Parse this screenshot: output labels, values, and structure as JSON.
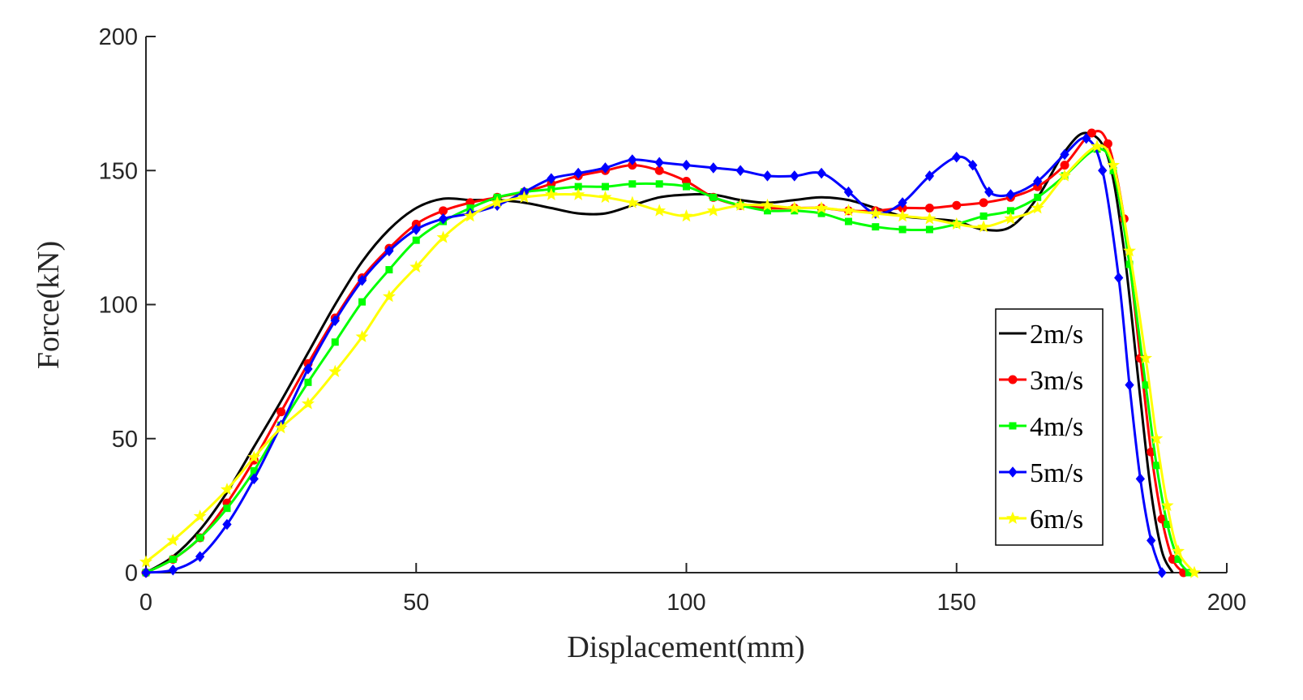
{
  "chart_data": {
    "type": "line",
    "title": "",
    "xlabel": "Displacement(mm)",
    "ylabel": "Force(kN)",
    "xlim": [
      0,
      200
    ],
    "ylim": [
      0,
      200
    ],
    "xticks": [
      "0",
      "50",
      "100",
      "150",
      "200"
    ],
    "yticks": [
      "0",
      "50",
      "100",
      "150",
      "200"
    ],
    "legend_position": "center-right",
    "series": [
      {
        "name": "2m/s",
        "color": "#000000",
        "marker": "none",
        "x": [
          0,
          5,
          10,
          15,
          20,
          25,
          30,
          35,
          40,
          45,
          50,
          55,
          60,
          65,
          70,
          75,
          80,
          85,
          90,
          95,
          100,
          105,
          110,
          115,
          120,
          125,
          130,
          135,
          140,
          145,
          150,
          155,
          160,
          165,
          170,
          174,
          178,
          181,
          184,
          186,
          188,
          190
        ],
        "y": [
          0,
          6,
          16,
          30,
          47,
          64,
          82,
          100,
          116,
          128,
          136,
          139.5,
          139,
          139,
          138,
          136,
          134,
          134,
          137,
          140,
          141,
          141,
          139,
          138,
          139,
          140,
          139,
          136,
          133,
          132,
          131,
          128,
          129,
          140,
          157,
          164,
          155,
          120,
          65,
          30,
          8,
          0
        ]
      },
      {
        "name": "3m/s",
        "color": "#ff0000",
        "marker": "circle",
        "x": [
          0,
          5,
          10,
          15,
          20,
          25,
          30,
          35,
          40,
          45,
          50,
          55,
          60,
          65,
          70,
          75,
          80,
          85,
          90,
          95,
          100,
          105,
          110,
          115,
          120,
          125,
          130,
          135,
          140,
          145,
          150,
          155,
          160,
          165,
          170,
          175,
          178,
          181,
          184,
          186,
          188,
          190,
          192
        ],
        "y": [
          0,
          5,
          13,
          26,
          42,
          60,
          78,
          95,
          110,
          121,
          130,
          135,
          138,
          140,
          142,
          145,
          148,
          150,
          152,
          150,
          146,
          140,
          137,
          136,
          136,
          136,
          135,
          135,
          136,
          136,
          137,
          138,
          140,
          144,
          152,
          164,
          160,
          132,
          80,
          45,
          20,
          5,
          0
        ]
      },
      {
        "name": "4m/s",
        "color": "#00ff00",
        "marker": "square",
        "x": [
          0,
          5,
          10,
          15,
          20,
          25,
          30,
          35,
          40,
          45,
          50,
          55,
          60,
          65,
          70,
          75,
          80,
          85,
          90,
          95,
          100,
          105,
          110,
          115,
          120,
          125,
          130,
          135,
          140,
          145,
          150,
          155,
          160,
          165,
          170,
          176,
          179,
          182,
          185,
          187,
          189,
          191,
          193
        ],
        "y": [
          0,
          5,
          13,
          24,
          38,
          55,
          71,
          86,
          101,
          113,
          124,
          131,
          136,
          140,
          142,
          143,
          144,
          144,
          145,
          145,
          144,
          140,
          137,
          135,
          135,
          134,
          131,
          129,
          128,
          128,
          130,
          133,
          135,
          140,
          148,
          158,
          150,
          115,
          70,
          40,
          18,
          5,
          0
        ]
      },
      {
        "name": "5m/s",
        "color": "#0000ff",
        "marker": "diamond",
        "x": [
          0,
          5,
          10,
          15,
          20,
          25,
          30,
          35,
          40,
          45,
          50,
          55,
          60,
          65,
          70,
          75,
          80,
          85,
          90,
          95,
          100,
          105,
          110,
          115,
          120,
          125,
          130,
          135,
          140,
          145,
          150,
          153,
          156,
          160,
          165,
          170,
          174,
          177,
          180,
          182,
          184,
          186,
          188
        ],
        "y": [
          0,
          1,
          6,
          18,
          35,
          55,
          76,
          94,
          109,
          120,
          128,
          132,
          134,
          137,
          142,
          147,
          149,
          151,
          154,
          153,
          152,
          151,
          150,
          148,
          148,
          149,
          142,
          134,
          138,
          148,
          155,
          152,
          142,
          141,
          146,
          156,
          162,
          150,
          110,
          70,
          35,
          12,
          0
        ]
      },
      {
        "name": "6m/s",
        "color": "#ffff00",
        "marker": "star",
        "x": [
          0,
          5,
          10,
          15,
          20,
          25,
          30,
          35,
          40,
          45,
          50,
          55,
          60,
          65,
          70,
          75,
          80,
          85,
          90,
          95,
          100,
          105,
          110,
          115,
          120,
          125,
          130,
          135,
          140,
          145,
          150,
          155,
          160,
          165,
          170,
          176,
          179,
          182,
          185,
          187,
          189,
          191,
          194
        ],
        "y": [
          4,
          12,
          21,
          31,
          43,
          54,
          63,
          75,
          88,
          103,
          114,
          125,
          133,
          138,
          140,
          141,
          141,
          140,
          138,
          135,
          133,
          135,
          137,
          137,
          136,
          136,
          135,
          134,
          133,
          132,
          130,
          129,
          132,
          136,
          148,
          159,
          152,
          120,
          80,
          50,
          25,
          8,
          0
        ]
      }
    ]
  }
}
